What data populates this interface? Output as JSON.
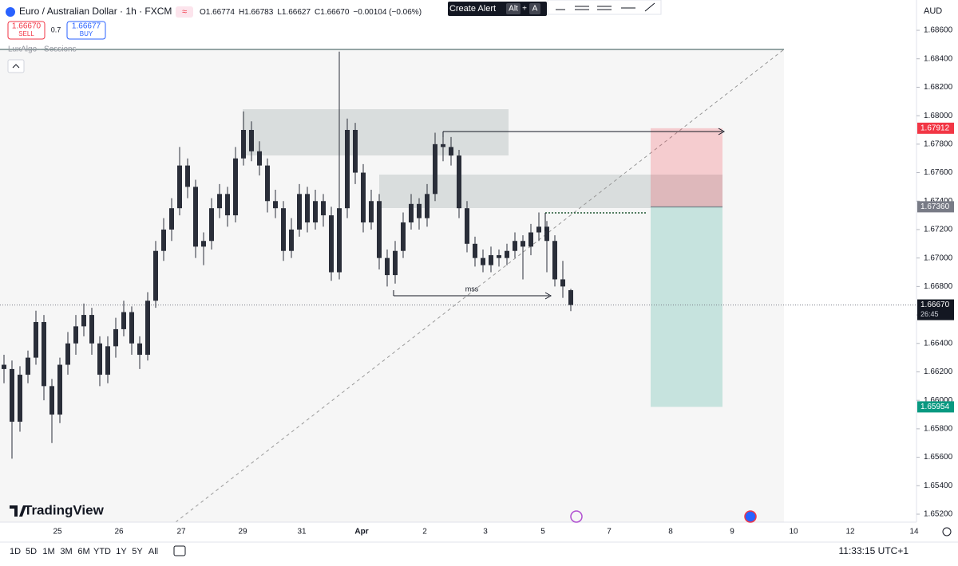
{
  "header": {
    "title": "Euro / Australian Dollar · 1h · FXCM",
    "ohlc": [
      "O1.66774",
      "H1.66783",
      "L1.66627",
      "C1.66670"
    ],
    "change": "−0.00104 (−0.06%)"
  },
  "trade": {
    "sell_price": "1.66670",
    "sell": "SELL",
    "spread": "0.7",
    "buy_price": "1.66677",
    "buy": "BUY"
  },
  "indicator": "LuxAlgo - Sessions",
  "toolbar": {
    "create_alert": "Create Alert",
    "shortcut": [
      "Alt",
      "+",
      "A"
    ]
  },
  "branding": "TradingView",
  "range_buttons": [
    "1D",
    "5D",
    "1M",
    "3M",
    "6M",
    "YTD",
    "1Y",
    "5Y",
    "All"
  ],
  "clock": "11:33:15 UTC+1",
  "chart_data": {
    "type": "candlestick",
    "currency": "AUD",
    "color": "#2a2e39",
    "candles": [
      [
        1.6625,
        1.6632,
        1.6612,
        1.6622
      ],
      [
        1.6622,
        1.6628,
        1.6559,
        1.6585
      ],
      [
        1.6585,
        1.6624,
        1.6578,
        1.6618
      ],
      [
        1.6618,
        1.6635,
        1.6612,
        1.663
      ],
      [
        1.663,
        1.6663,
        1.6625,
        1.6655
      ],
      [
        1.6655,
        1.666,
        1.66,
        1.661
      ],
      [
        1.661,
        1.6615,
        1.657,
        1.659
      ],
      [
        1.659,
        1.663,
        1.6584,
        1.6625
      ],
      [
        1.6625,
        1.6648,
        1.6618,
        1.664
      ],
      [
        1.664,
        1.666,
        1.6632,
        1.6652
      ],
      [
        1.6652,
        1.6668,
        1.6645,
        1.666
      ],
      [
        1.666,
        1.6665,
        1.6632,
        1.664
      ],
      [
        1.664,
        1.6645,
        1.661,
        1.6618
      ],
      [
        1.6618,
        1.6645,
        1.6612,
        1.6638
      ],
      [
        1.6638,
        1.6658,
        1.663,
        1.665
      ],
      [
        1.665,
        1.667,
        1.6645,
        1.6662
      ],
      [
        1.6662,
        1.6666,
        1.6632,
        1.664
      ],
      [
        1.664,
        1.6645,
        1.6622,
        1.6632
      ],
      [
        1.6632,
        1.6676,
        1.6628,
        1.667
      ],
      [
        1.667,
        1.6712,
        1.6665,
        1.6705
      ],
      [
        1.6705,
        1.6728,
        1.6698,
        1.672
      ],
      [
        1.672,
        1.6742,
        1.6712,
        1.6735
      ],
      [
        1.6735,
        1.6778,
        1.673,
        1.6765
      ],
      [
        1.6765,
        1.677,
        1.6742,
        1.675
      ],
      [
        1.675,
        1.6755,
        1.67,
        1.6708
      ],
      [
        1.6708,
        1.6718,
        1.6695,
        1.6712
      ],
      [
        1.6712,
        1.6742,
        1.6706,
        1.6735
      ],
      [
        1.6735,
        1.6752,
        1.6728,
        1.6745
      ],
      [
        1.6745,
        1.675,
        1.6722,
        1.673
      ],
      [
        1.673,
        1.6778,
        1.6725,
        1.677
      ],
      [
        1.677,
        1.6803,
        1.6765,
        1.679
      ],
      [
        1.679,
        1.6796,
        1.6768,
        1.6775
      ],
      [
        1.6775,
        1.6782,
        1.6758,
        1.6765
      ],
      [
        1.6765,
        1.677,
        1.6732,
        1.674
      ],
      [
        1.674,
        1.6748,
        1.6728,
        1.6735
      ],
      [
        1.6735,
        1.674,
        1.6698,
        1.6705
      ],
      [
        1.6705,
        1.6728,
        1.67,
        1.672
      ],
      [
        1.672,
        1.6752,
        1.6715,
        1.6745
      ],
      [
        1.6745,
        1.675,
        1.6718,
        1.6725
      ],
      [
        1.6725,
        1.6748,
        1.672,
        1.674
      ],
      [
        1.674,
        1.6745,
        1.6722,
        1.673
      ],
      [
        1.673,
        1.6736,
        1.6684,
        1.669
      ],
      [
        1.669,
        1.6845,
        1.6685,
        1.6735
      ],
      [
        1.6735,
        1.6798,
        1.6728,
        1.679
      ],
      [
        1.679,
        1.6795,
        1.6752,
        1.676
      ],
      [
        1.676,
        1.6766,
        1.6718,
        1.6725
      ],
      [
        1.6725,
        1.6748,
        1.672,
        1.674
      ],
      [
        1.674,
        1.6745,
        1.6692,
        1.67
      ],
      [
        1.67,
        1.6706,
        1.668,
        1.6688
      ],
      [
        1.6688,
        1.6712,
        1.6682,
        1.6705
      ],
      [
        1.6705,
        1.6732,
        1.67,
        1.6725
      ],
      [
        1.6725,
        1.6745,
        1.672,
        1.6738
      ],
      [
        1.6738,
        1.6742,
        1.672,
        1.6728
      ],
      [
        1.6728,
        1.6752,
        1.6722,
        1.6745
      ],
      [
        1.6745,
        1.6788,
        1.674,
        1.678
      ],
      [
        1.678,
        1.6786,
        1.6768,
        1.6778
      ],
      [
        1.6778,
        1.6785,
        1.6765,
        1.6772
      ],
      [
        1.6772,
        1.6776,
        1.6728,
        1.6735
      ],
      [
        1.6735,
        1.674,
        1.6704,
        1.671
      ],
      [
        1.671,
        1.6715,
        1.6694,
        1.67
      ],
      [
        1.67,
        1.6706,
        1.669,
        1.6695
      ],
      [
        1.6695,
        1.6708,
        1.669,
        1.6702
      ],
      [
        1.6702,
        1.6706,
        1.6694,
        1.67
      ],
      [
        1.67,
        1.671,
        1.6695,
        1.6705
      ],
      [
        1.6705,
        1.6718,
        1.67,
        1.6712
      ],
      [
        1.6712,
        1.6716,
        1.6685,
        1.6708
      ],
      [
        1.6708,
        1.6724,
        1.6702,
        1.6718
      ],
      [
        1.6718,
        1.6732,
        1.6712,
        1.6722
      ],
      [
        1.6722,
        1.6726,
        1.669,
        1.6712
      ],
      [
        1.6712,
        1.6716,
        1.668,
        1.6685
      ],
      [
        1.6685,
        1.6698,
        1.6672,
        1.668
      ],
      [
        1.66774,
        1.66783,
        1.66627,
        1.6667
      ]
    ],
    "ylim": [
      1.65144,
      1.68813
    ],
    "yticks": [
      {
        "value": 1.686,
        "label": "1.68600"
      },
      {
        "value": 1.684,
        "label": "1.68400"
      },
      {
        "value": 1.682,
        "label": "1.68200"
      },
      {
        "value": 1.68,
        "label": "1.68000"
      },
      {
        "value": 1.678,
        "label": "1.67800"
      },
      {
        "value": 1.676,
        "label": "1.67600"
      },
      {
        "value": 1.674,
        "label": "1.67400"
      },
      {
        "value": 1.672,
        "label": "1.67200"
      },
      {
        "value": 1.67,
        "label": "1.67000"
      },
      {
        "value": 1.668,
        "label": "1.66800"
      },
      {
        "value": 1.666,
        "label": "1.66600"
      },
      {
        "value": 1.664,
        "label": "1.66400"
      },
      {
        "value": 1.662,
        "label": "1.66200"
      },
      {
        "value": 1.66,
        "label": "1.66000"
      },
      {
        "value": 1.658,
        "label": "1.65800"
      },
      {
        "value": 1.656,
        "label": "1.65600"
      },
      {
        "value": 1.654,
        "label": "1.65400"
      },
      {
        "value": 1.652,
        "label": "1.65200"
      }
    ],
    "xticks": [
      "25",
      "26",
      "27",
      "29",
      "31",
      "Apr",
      "2",
      "3",
      "5",
      "7",
      "8",
      "9",
      "10",
      "12",
      "14"
    ],
    "annotation": "mss",
    "last_price": {
      "value": 1.6667,
      "label": "1.66670"
    },
    "countdown": "26:45",
    "position": {
      "stop": {
        "value": 1.67912,
        "label": "1.67912"
      },
      "entry": {
        "value": 1.6736,
        "label": "1.67360"
      },
      "target": {
        "value": 1.65954,
        "label": "1.65954"
      }
    }
  }
}
